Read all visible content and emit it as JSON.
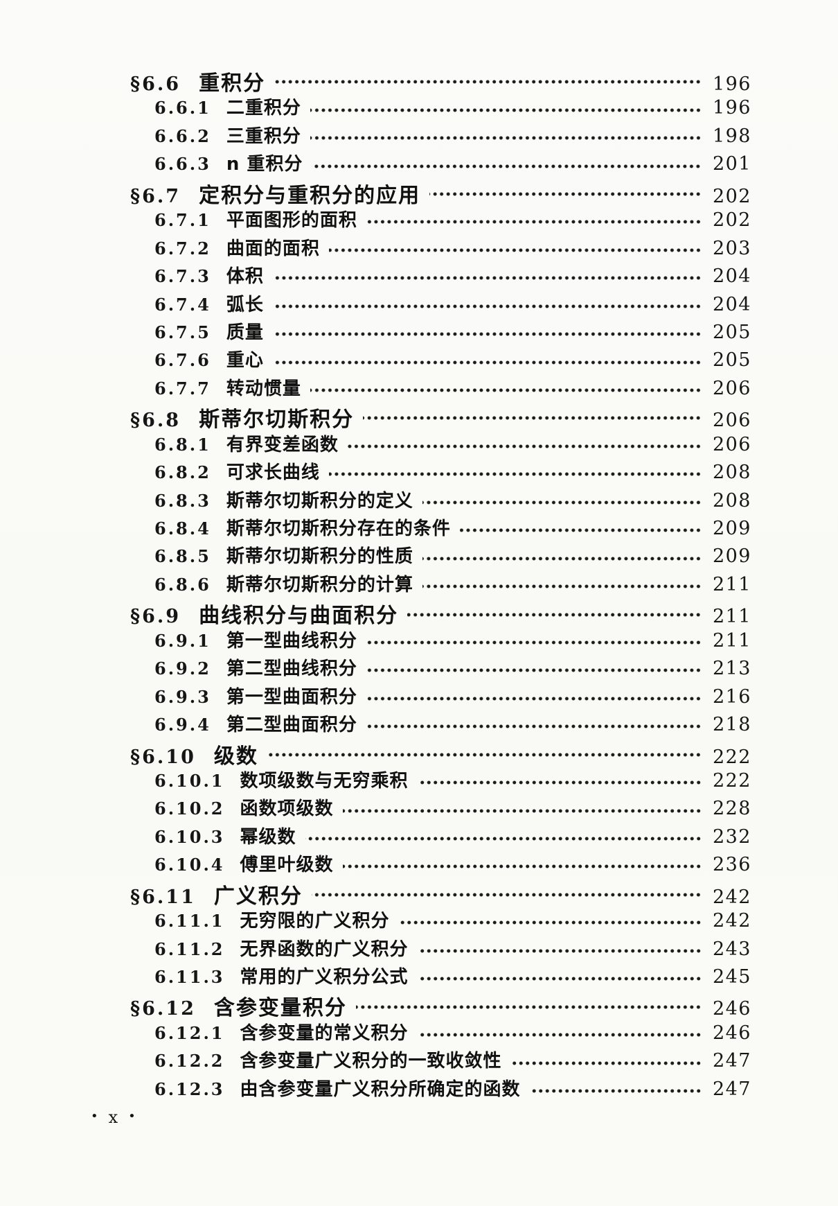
{
  "document": {
    "kind": "table-of-contents-page",
    "footer": {
      "left_dot": "•",
      "page_label": "x",
      "right_dot": "•"
    },
    "entries": [
      {
        "level": "section",
        "number": "§6.6",
        "title": "重积分",
        "page": "196"
      },
      {
        "level": "subsection",
        "number": "6.6.1",
        "title": "二重积分",
        "page": "196"
      },
      {
        "level": "subsection",
        "number": "6.6.2",
        "title": "三重积分",
        "page": "198"
      },
      {
        "level": "subsection",
        "number": "6.6.3",
        "title": "n 重积分",
        "page": "201"
      },
      {
        "level": "section",
        "number": "§6.7",
        "title": "定积分与重积分的应用",
        "page": "202"
      },
      {
        "level": "subsection",
        "number": "6.7.1",
        "title": "平面图形的面积",
        "page": "202"
      },
      {
        "level": "subsection",
        "number": "6.7.2",
        "title": "曲面的面积",
        "page": "203"
      },
      {
        "level": "subsection",
        "number": "6.7.3",
        "title": "体积",
        "page": "204"
      },
      {
        "level": "subsection",
        "number": "6.7.4",
        "title": "弧长",
        "page": "204"
      },
      {
        "level": "subsection",
        "number": "6.7.5",
        "title": "质量",
        "page": "205"
      },
      {
        "level": "subsection",
        "number": "6.7.6",
        "title": "重心",
        "page": "205"
      },
      {
        "level": "subsection",
        "number": "6.7.7",
        "title": "转动惯量",
        "page": "206"
      },
      {
        "level": "section",
        "number": "§6.8",
        "title": "斯蒂尔切斯积分",
        "page": "206"
      },
      {
        "level": "subsection",
        "number": "6.8.1",
        "title": "有界变差函数",
        "page": "206"
      },
      {
        "level": "subsection",
        "number": "6.8.2",
        "title": "可求长曲线",
        "page": "208"
      },
      {
        "level": "subsection",
        "number": "6.8.3",
        "title": "斯蒂尔切斯积分的定义",
        "page": "208"
      },
      {
        "level": "subsection",
        "number": "6.8.4",
        "title": "斯蒂尔切斯积分存在的条件",
        "page": "209"
      },
      {
        "level": "subsection",
        "number": "6.8.5",
        "title": "斯蒂尔切斯积分的性质",
        "page": "209"
      },
      {
        "level": "subsection",
        "number": "6.8.6",
        "title": "斯蒂尔切斯积分的计算",
        "page": "211"
      },
      {
        "level": "section",
        "number": "§6.9",
        "title": "曲线积分与曲面积分",
        "page": "211"
      },
      {
        "level": "subsection",
        "number": "6.9.1",
        "title": "第一型曲线积分",
        "page": "211"
      },
      {
        "level": "subsection",
        "number": "6.9.2",
        "title": "第二型曲线积分",
        "page": "213"
      },
      {
        "level": "subsection",
        "number": "6.9.3",
        "title": "第一型曲面积分",
        "page": "216"
      },
      {
        "level": "subsection",
        "number": "6.9.4",
        "title": "第二型曲面积分",
        "page": "218"
      },
      {
        "level": "section",
        "number": "§6.10",
        "title": "级数",
        "page": "222"
      },
      {
        "level": "subsection",
        "number": "6.10.1",
        "title": "数项级数与无穷乘积",
        "page": "222"
      },
      {
        "level": "subsection",
        "number": "6.10.2",
        "title": "函数项级数",
        "page": "228"
      },
      {
        "level": "subsection",
        "number": "6.10.3",
        "title": "幂级数",
        "page": "232"
      },
      {
        "level": "subsection",
        "number": "6.10.4",
        "title": "傅里叶级数",
        "page": "236"
      },
      {
        "level": "section",
        "number": "§6.11",
        "title": "广义积分",
        "page": "242"
      },
      {
        "level": "subsection",
        "number": "6.11.1",
        "title": "无穷限的广义积分",
        "page": "242"
      },
      {
        "level": "subsection",
        "number": "6.11.2",
        "title": "无界函数的广义积分",
        "page": "243"
      },
      {
        "level": "subsection",
        "number": "6.11.3",
        "title": "常用的广义积分公式",
        "page": "245"
      },
      {
        "level": "section",
        "number": "§6.12",
        "title": "含参变量积分",
        "page": "246"
      },
      {
        "level": "subsection",
        "number": "6.12.1",
        "title": "含参变量的常义积分",
        "page": "246"
      },
      {
        "level": "subsection",
        "number": "6.12.2",
        "title": "含参变量广义积分的一致收敛性",
        "page": "247"
      },
      {
        "level": "subsection",
        "number": "6.12.3",
        "title": "由含参变量广义积分所确定的函数",
        "page": "247"
      }
    ]
  }
}
